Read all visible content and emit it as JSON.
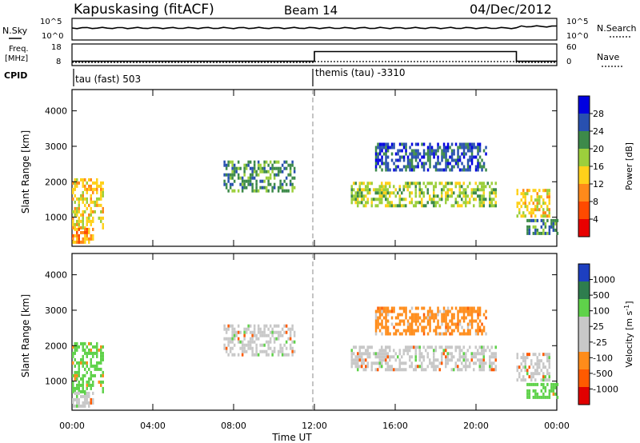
{
  "header": {
    "station": "Kapuskasing (fitACF)",
    "beam": "Beam 14",
    "date": "04/Dec/2012"
  },
  "top_panels": {
    "nsky_label": "N.Sky",
    "nsky_ticks": [
      "10^5",
      "10^0"
    ],
    "nsearch_label": "N.Search",
    "nsearch_ticks": [
      "10^5",
      "10^0"
    ],
    "freq_label": "Freq.",
    "freq_unit": "[MHz]",
    "freq_ticks": [
      "18",
      "8"
    ],
    "nave_label": "Nave",
    "nave_ticks": [
      "60",
      "0"
    ],
    "cpid_label": "CPID",
    "cpid_segments": [
      "tau (fast) 503",
      "themis (tau) -3310"
    ]
  },
  "x_axis": {
    "label": "Time UT",
    "ticks": [
      "00:00",
      "04:00",
      "08:00",
      "12:00",
      "16:00",
      "20:00",
      "00:00"
    ]
  },
  "power_panel": {
    "ylabel": "Slant Range [km]",
    "yticks": [
      "4000",
      "3000",
      "2000",
      "1000"
    ],
    "colorbar_label": "Power [dB]",
    "colorbar_ticks": [
      "28",
      "24",
      "20",
      "16",
      "12",
      "8",
      "4"
    ],
    "colors": [
      "#0000e0",
      "#2850b0",
      "#3d8a4a",
      "#9ccf3c",
      "#ffd11a",
      "#ff8a1a",
      "#ff4a00",
      "#e80000"
    ]
  },
  "velocity_panel": {
    "ylabel": "Slant Range [km]",
    "yticks": [
      "4000",
      "3000",
      "2000",
      "1000"
    ],
    "colorbar_label": "Velocity [m s^-1]",
    "colorbar_ticks": [
      "1000",
      "500",
      "100",
      "25",
      "-25",
      "-100",
      "-500",
      "-1000"
    ],
    "colors": [
      "#1d3fc0",
      "#2e7d4e",
      "#5fd24a",
      "#c8c8c8",
      "#c8c8c8",
      "#ff8c1a",
      "#ff5a00",
      "#e00000"
    ]
  },
  "chart_data": {
    "type": "heatmap",
    "x_range_hours": [
      0,
      24
    ],
    "y_range_km": [
      180,
      4600
    ],
    "top_strips": {
      "frequency_mhz": [
        {
          "start_hour": 0.0,
          "end_hour": 12.0,
          "value": 10
        },
        {
          "start_hour": 12.0,
          "end_hour": 22.0,
          "value": 14.5
        },
        {
          "start_hour": 22.0,
          "end_hour": 24.0,
          "value": 10
        }
      ],
      "nave": [
        {
          "start_hour": 0.0,
          "end_hour": 12.0,
          "value": 9
        },
        {
          "start_hour": 12.0,
          "end_hour": 22.0,
          "value": 11
        },
        {
          "start_hour": 22.0,
          "end_hour": 24.0,
          "value": 9
        }
      ]
    },
    "echo_regions": [
      {
        "name": "evening",
        "t_start": 0.0,
        "t_end": 1.5,
        "r_start": 700,
        "r_end": 2100,
        "power_db": 20,
        "velocity": 100
      },
      {
        "name": "near-range",
        "t_start": 0.0,
        "t_end": 1.0,
        "r_start": 250,
        "r_end": 700,
        "power_db": 22,
        "velocity": -25
      },
      {
        "name": "arc-1",
        "t_start": 7.5,
        "t_end": 11.0,
        "r_start": 1700,
        "r_end": 2600,
        "power_db": 12,
        "velocity": 25
      },
      {
        "name": "band-1",
        "t_start": 13.8,
        "t_end": 21.0,
        "r_start": 1300,
        "r_end": 2000,
        "power_db": 14,
        "velocity": 25
      },
      {
        "name": "upper-band",
        "t_start": 15.0,
        "t_end": 20.5,
        "r_start": 2300,
        "r_end": 3100,
        "power_db": 8,
        "velocity": -100
      },
      {
        "name": "morning",
        "t_start": 22.0,
        "t_end": 23.6,
        "r_start": 1000,
        "r_end": 1800,
        "power_db": 20,
        "velocity": 25
      },
      {
        "name": "morning-low",
        "t_start": 22.5,
        "t_end": 24.0,
        "r_start": 550,
        "r_end": 950,
        "power_db": 10,
        "velocity": 100
      }
    ]
  }
}
